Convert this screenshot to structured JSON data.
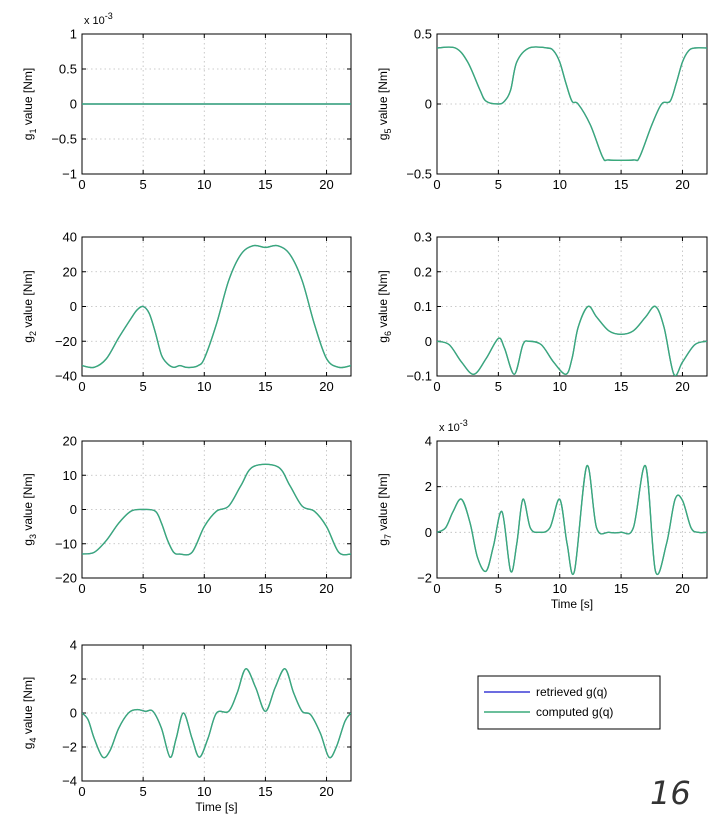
{
  "page_number": "16",
  "legend": [
    {
      "label": "retrieved g(q)",
      "color": "#3b3bd6"
    },
    {
      "label": "computed g(q)",
      "color": "#3aaa7a"
    }
  ],
  "chart_data": [
    {
      "type": "line",
      "sub": "1",
      "ylabel_pre": "g",
      "ylabel_post": " value [Nm]",
      "xlim": [
        0,
        22
      ],
      "ylim": [
        -1,
        1
      ],
      "xticks": [
        0,
        5,
        10,
        15,
        20
      ],
      "yticks": [
        -1,
        -0.5,
        0,
        0.5,
        1
      ],
      "ytick_labels": [
        "−1",
        "−0.5",
        "0",
        "0.5",
        "1"
      ],
      "exponent": "-3",
      "xlabel": "",
      "grid": true,
      "x": [
        0,
        22
      ],
      "y": [
        0,
        0
      ]
    },
    {
      "type": "line",
      "sub": "5",
      "ylabel_pre": "g",
      "ylabel_post": " value [Nm]",
      "xlim": [
        0,
        22
      ],
      "ylim": [
        -0.5,
        0.5
      ],
      "xticks": [
        0,
        5,
        10,
        15,
        20
      ],
      "yticks": [
        -0.5,
        0,
        0.5
      ],
      "ytick_labels": [
        "−0.5",
        "0",
        "0.5"
      ],
      "exponent": "",
      "xlabel": "",
      "grid": true,
      "x": [
        0,
        1.5,
        2.5,
        3.5,
        4.0,
        5.0,
        5.5,
        6.0,
        6.5,
        7.5,
        9.0,
        9.5,
        10.0,
        10.5,
        11.0,
        11.5,
        12.5,
        13.5,
        14.0,
        16.0,
        16.5,
        17.5,
        18.3,
        19.0,
        19.5,
        20.0,
        20.5,
        21.0,
        22.0
      ],
      "y": [
        0.4,
        0.4,
        0.3,
        0.1,
        0.02,
        0.0,
        0.02,
        0.1,
        0.3,
        0.4,
        0.4,
        0.38,
        0.3,
        0.15,
        0.02,
        0.0,
        -0.15,
        -0.38,
        -0.4,
        -0.4,
        -0.38,
        -0.15,
        0.0,
        0.02,
        0.15,
        0.3,
        0.38,
        0.4,
        0.4
      ]
    },
    {
      "type": "line",
      "sub": "2",
      "ylabel_pre": "g",
      "ylabel_post": " value [Nm]",
      "xlim": [
        0,
        22
      ],
      "ylim": [
        -40,
        40
      ],
      "xticks": [
        0,
        5,
        10,
        15,
        20
      ],
      "yticks": [
        -40,
        -20,
        0,
        20,
        40
      ],
      "ytick_labels": [
        "−40",
        "−20",
        "0",
        "20",
        "40"
      ],
      "exponent": "",
      "xlabel": "",
      "grid": true,
      "x": [
        0,
        1,
        2,
        3,
        4,
        4.5,
        5.0,
        5.5,
        6.0,
        6.5,
        7.0,
        7.5,
        8.0,
        8.5,
        9.0,
        9.5,
        10.0,
        11.0,
        12.0,
        13.0,
        14.0,
        15.0,
        16.0,
        17.0,
        18.0,
        19.0,
        20.0,
        21.0,
        22.0
      ],
      "y": [
        -34,
        -35,
        -30,
        -18,
        -7,
        -2,
        0,
        -4,
        -15,
        -28,
        -33,
        -35,
        -34,
        -35,
        -35,
        -34,
        -30,
        -10,
        15,
        30,
        35,
        34,
        35,
        30,
        15,
        -10,
        -30,
        -35,
        -34
      ]
    },
    {
      "type": "line",
      "sub": "6",
      "ylabel_pre": "g",
      "ylabel_post": " value [Nm]",
      "xlim": [
        0,
        22
      ],
      "ylim": [
        -0.1,
        0.3
      ],
      "xticks": [
        0,
        5,
        10,
        15,
        20
      ],
      "yticks": [
        -0.1,
        0,
        0.1,
        0.2,
        0.3
      ],
      "ytick_labels": [
        "−0.1",
        "0",
        "0.1",
        "0.2",
        "0.3"
      ],
      "exponent": "",
      "xlabel": "",
      "grid": true,
      "x": [
        0,
        1.0,
        2.0,
        3.0,
        4.0,
        5.0,
        5.5,
        6.3,
        7.0,
        7.5,
        8.5,
        9.5,
        10.5,
        11.0,
        11.5,
        12.3,
        13.0,
        14.0,
        15.0,
        16.0,
        17.0,
        17.8,
        18.5,
        19.3,
        20.0,
        21.0,
        22.0
      ],
      "y": [
        0,
        -0.01,
        -0.06,
        -0.095,
        -0.05,
        0.008,
        -0.02,
        -0.095,
        -0.01,
        0,
        -0.01,
        -0.06,
        -0.095,
        -0.05,
        0.04,
        0.1,
        0.07,
        0.03,
        0.02,
        0.03,
        0.07,
        0.1,
        0.04,
        -0.095,
        -0.06,
        -0.01,
        0
      ]
    },
    {
      "type": "line",
      "sub": "3",
      "ylabel_pre": "g",
      "ylabel_post": " value [Nm]",
      "xlim": [
        0,
        22
      ],
      "ylim": [
        -20,
        20
      ],
      "xticks": [
        0,
        5,
        10,
        15,
        20
      ],
      "yticks": [
        -20,
        -10,
        0,
        10,
        20
      ],
      "ytick_labels": [
        "−20",
        "−10",
        "0",
        "10",
        "20"
      ],
      "exponent": "",
      "xlabel": "",
      "grid": true,
      "x": [
        0,
        1.0,
        2.0,
        3.0,
        4.0,
        5.0,
        6.0,
        6.5,
        7.0,
        7.5,
        8.0,
        9.0,
        10.0,
        11.0,
        12.0,
        13.0,
        14.0,
        16.0,
        17.0,
        18.0,
        19.0,
        20.0,
        21.0,
        22.0
      ],
      "y": [
        -13,
        -12.5,
        -9,
        -4,
        -0.5,
        0,
        -0.5,
        -4,
        -9,
        -12.5,
        -13,
        -12.5,
        -5,
        -0.5,
        1,
        7,
        12.5,
        12.5,
        7,
        1,
        -0.5,
        -5,
        -12.5,
        -13
      ]
    },
    {
      "type": "line",
      "sub": "7",
      "ylabel_pre": "g",
      "ylabel_post": " value [Nm]",
      "xlim": [
        0,
        22
      ],
      "ylim": [
        -2,
        4
      ],
      "xticks": [
        0,
        5,
        10,
        15,
        20
      ],
      "yticks": [
        -2,
        0,
        2,
        4
      ],
      "ytick_labels": [
        "−2",
        "0",
        "2",
        "4"
      ],
      "exponent": "-3",
      "xlabel": "Time [s]",
      "grid": true,
      "x": [
        0,
        0.7,
        1.3,
        2.0,
        2.7,
        3.3,
        4.0,
        4.6,
        5.3,
        6.0,
        6.5,
        7.0,
        7.6,
        8.3,
        9.2,
        10.0,
        10.6,
        11.2,
        12.2,
        13.0,
        14.0,
        15.0,
        16.0,
        17.0,
        17.8,
        18.7,
        19.4,
        20.0,
        20.7,
        21.3,
        22.0
      ],
      "y": [
        0,
        0.2,
        0.9,
        1.45,
        0.4,
        -1.1,
        -1.7,
        -0.6,
        0.9,
        -1.7,
        -0.5,
        1.45,
        0.2,
        0,
        0.2,
        1.45,
        -0.5,
        -1.7,
        2.9,
        0.2,
        0,
        0,
        0.2,
        2.9,
        -1.7,
        -0.5,
        1.45,
        1.4,
        0.2,
        0,
        0
      ]
    },
    {
      "type": "line",
      "sub": "4",
      "ylabel_pre": "g",
      "ylabel_post": " value [Nm]",
      "xlim": [
        0,
        22
      ],
      "ylim": [
        -4,
        4
      ],
      "xticks": [
        0,
        5,
        10,
        15,
        20
      ],
      "yticks": [
        -4,
        -2,
        0,
        2,
        4
      ],
      "ytick_labels": [
        "−4",
        "−2",
        "0",
        "2",
        "4"
      ],
      "exponent": "",
      "xlabel": "Time [s]",
      "grid": true,
      "x": [
        0,
        0.5,
        1.0,
        1.7,
        2.3,
        3.0,
        3.8,
        4.5,
        5.2,
        5.8,
        6.5,
        7.2,
        7.7,
        8.3,
        9.0,
        9.6,
        10.3,
        11.0,
        12.0,
        12.7,
        13.4,
        14.2,
        15.0,
        15.8,
        16.6,
        17.3,
        18.0,
        18.7,
        19.5,
        20.2,
        20.8,
        21.5,
        22.0
      ],
      "y": [
        0,
        -0.4,
        -1.5,
        -2.6,
        -2.2,
        -0.9,
        0,
        0.2,
        0.1,
        0.1,
        -0.9,
        -2.6,
        -1.5,
        0,
        -1.5,
        -2.6,
        -1.5,
        0,
        0.1,
        1.2,
        2.6,
        1.5,
        0.1,
        1.5,
        2.6,
        1.2,
        0.1,
        -0.1,
        -1.2,
        -2.6,
        -2.0,
        -0.5,
        0
      ]
    }
  ]
}
